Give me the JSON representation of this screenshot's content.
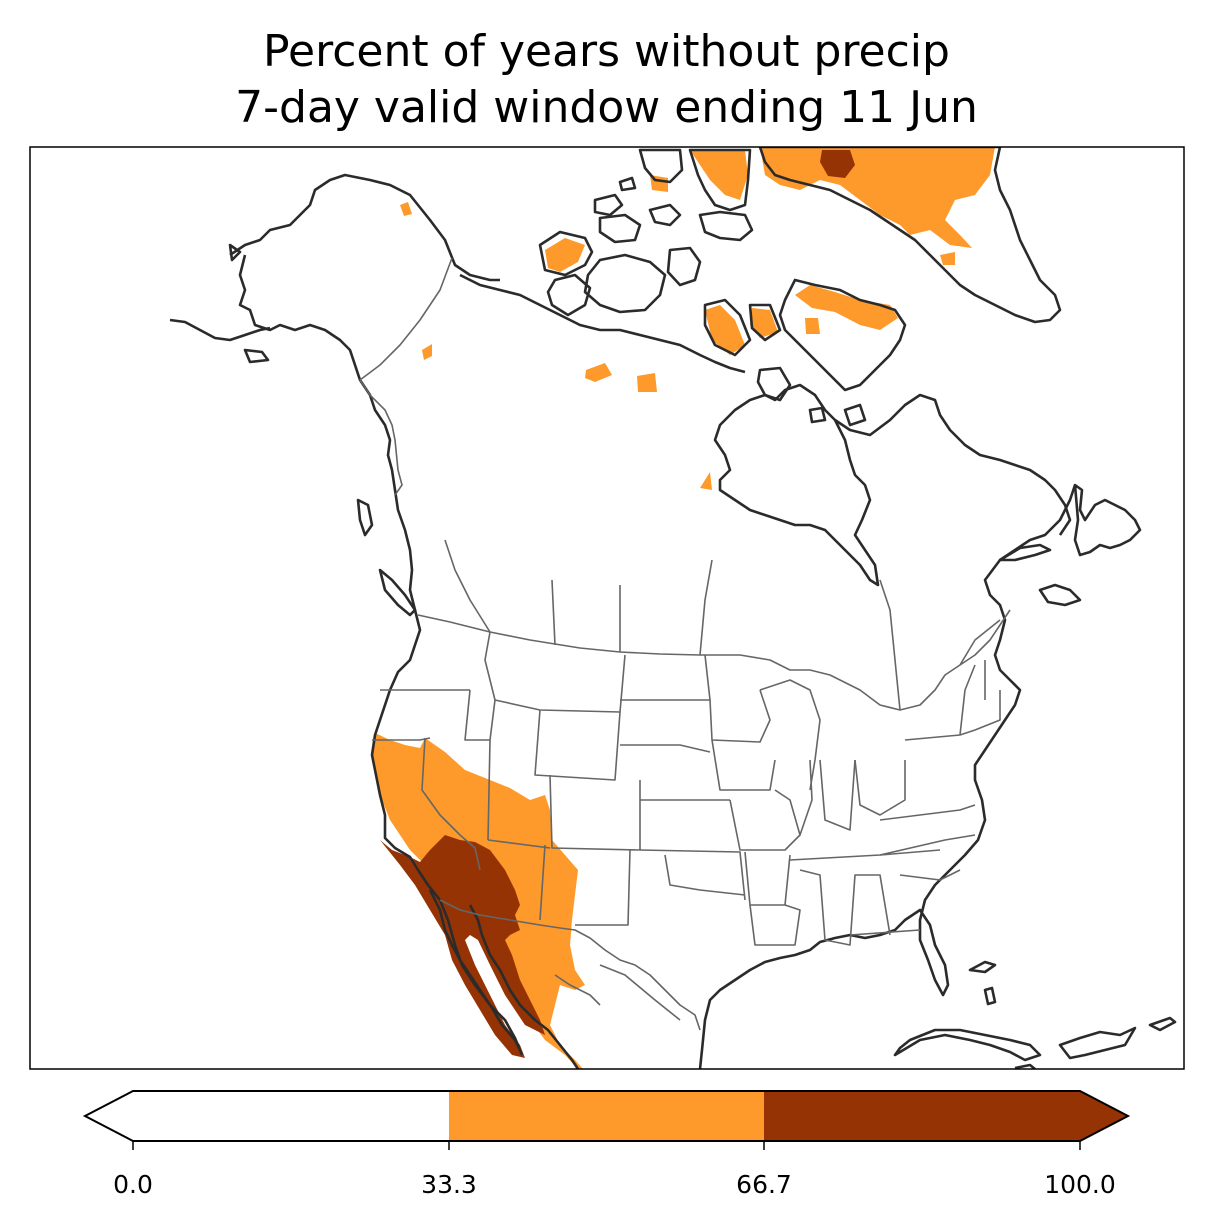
{
  "title": {
    "line1": "Percent of years without precip",
    "line2": "7-day valid window ending 11 Jun"
  },
  "colorbar": {
    "ticks": [
      "0.0",
      "33.3",
      "66.7",
      "100.0"
    ],
    "bins": [
      {
        "from": 0.0,
        "to": 33.3,
        "color": "#ffffff"
      },
      {
        "from": 33.3,
        "to": 66.7,
        "color": "#fd9a2b"
      },
      {
        "from": 66.7,
        "to": 100.0,
        "color": "#953305"
      }
    ],
    "extend": "both"
  },
  "colors": {
    "low": "#ffffff",
    "mid": "#fd9a2b",
    "high": "#953305",
    "coast": "#2b2b2b",
    "border": "#666666"
  }
}
